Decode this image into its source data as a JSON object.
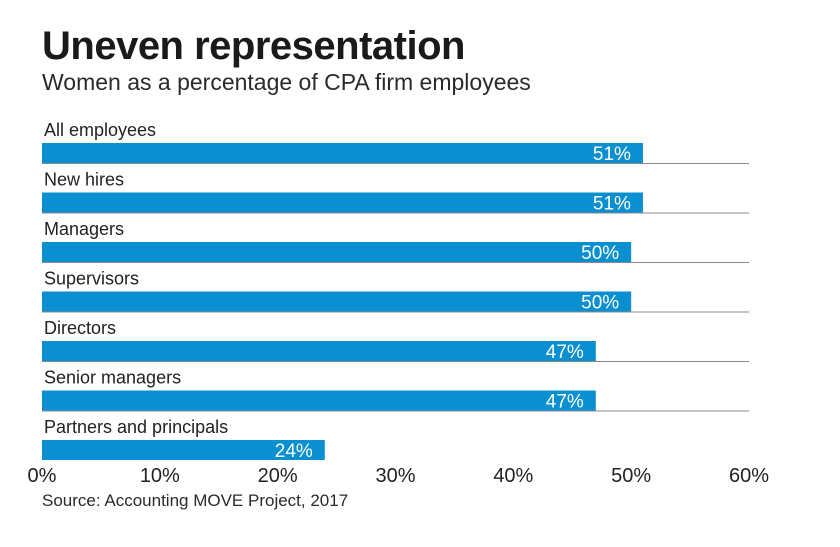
{
  "chart_data": {
    "type": "bar",
    "orientation": "horizontal",
    "title": "Uneven representation",
    "subtitle": "Women as a percentage of CPA firm employees",
    "categories": [
      "All employees",
      "New hires",
      "Managers",
      "Supervisors",
      "Directors",
      "Senior managers",
      "Partners and principals"
    ],
    "values": [
      51,
      51,
      50,
      50,
      47,
      47,
      24
    ],
    "value_labels": [
      "51%",
      "51%",
      "50%",
      "50%",
      "47%",
      "47%",
      "24%"
    ],
    "xlim": [
      0,
      60
    ],
    "xticks": [
      0,
      10,
      20,
      30,
      40,
      50,
      60
    ],
    "xtick_labels": [
      "0%",
      "10%",
      "20%",
      "30%",
      "40%",
      "50%",
      "60%"
    ],
    "xlabel": "",
    "ylabel": "",
    "grid": false,
    "bar_color": "#0a8fd1",
    "source": "Source: Accounting MOVE Project, 2017"
  }
}
